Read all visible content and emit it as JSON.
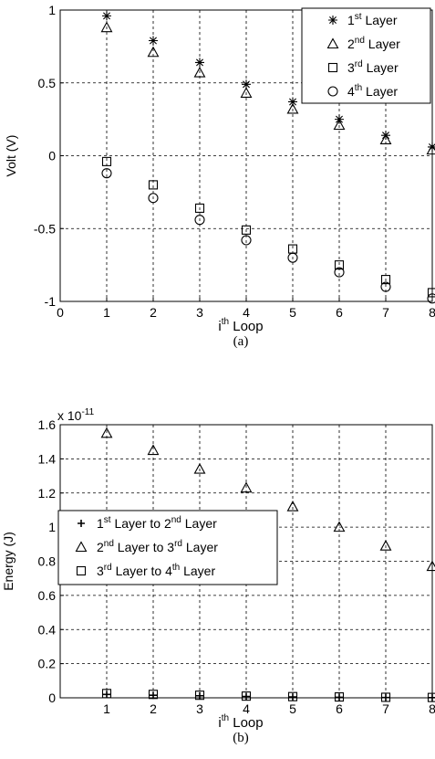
{
  "chart_data": [
    {
      "type": "scatter",
      "ylabel": "Volt (V)",
      "xlabel": {
        "pre": "i",
        "sup": "th",
        "post": " Loop"
      },
      "caption": "(a)",
      "xlim": [
        0,
        8
      ],
      "ylim": [
        -1,
        1
      ],
      "xticks": [
        0,
        1,
        2,
        3,
        4,
        5,
        6,
        7,
        8
      ],
      "yticks": [
        -1,
        -0.5,
        0,
        0.5,
        1
      ],
      "grid": true,
      "legend_position": "top-right",
      "series": [
        {
          "name": {
            "pre": "1",
            "sup": "st",
            "post": " Layer"
          },
          "marker": "star",
          "x": [
            1,
            2,
            3,
            4,
            5,
            6,
            7,
            8
          ],
          "y": [
            0.96,
            0.79,
            0.64,
            0.49,
            0.37,
            0.25,
            0.14,
            0.06
          ]
        },
        {
          "name": {
            "pre": "2",
            "sup": "nd",
            "post": " Layer"
          },
          "marker": "triangle",
          "x": [
            1,
            2,
            3,
            4,
            5,
            6,
            7,
            8
          ],
          "y": [
            0.88,
            0.71,
            0.57,
            0.43,
            0.32,
            0.21,
            0.11,
            0.04
          ]
        },
        {
          "name": {
            "pre": "3",
            "sup": "rd",
            "post": " Layer"
          },
          "marker": "square",
          "x": [
            1,
            2,
            3,
            4,
            5,
            6,
            7,
            8
          ],
          "y": [
            -0.04,
            -0.2,
            -0.36,
            -0.51,
            -0.64,
            -0.75,
            -0.85,
            -0.94
          ]
        },
        {
          "name": {
            "pre": "4",
            "sup": "th",
            "post": " Layer"
          },
          "marker": "circle",
          "x": [
            1,
            2,
            3,
            4,
            5,
            6,
            7,
            8
          ],
          "y": [
            -0.12,
            -0.29,
            -0.44,
            -0.58,
            -0.7,
            -0.8,
            -0.9,
            -0.98
          ]
        }
      ]
    },
    {
      "type": "scatter",
      "ylabel": "Energy (J)",
      "xlabel": {
        "pre": "i",
        "sup": "th",
        "post": " Loop"
      },
      "caption": "(b)",
      "multiplier": {
        "base": "x 10",
        "exp": "-11"
      },
      "xlim": [
        0,
        8
      ],
      "ylim": [
        0,
        1.6
      ],
      "xticks": [
        1,
        2,
        3,
        4,
        5,
        6,
        7,
        8
      ],
      "yticks": [
        0,
        0.2,
        0.4,
        0.6,
        0.8,
        1,
        1.2,
        1.4,
        1.6
      ],
      "grid": true,
      "legend_position": "center-left",
      "series": [
        {
          "name": {
            "a": "1",
            "asup": "st",
            "mid": " Layer to 2",
            "bsup": "nd",
            "post": " Layer"
          },
          "marker": "plus",
          "x": [
            1,
            2,
            3,
            4,
            5,
            6,
            7,
            8
          ],
          "y": [
            0.02,
            0.015,
            0.012,
            0.008,
            0.005,
            0.003,
            0.002,
            0.001
          ]
        },
        {
          "name": {
            "a": "2",
            "asup": "nd",
            "mid": " Layer to 3",
            "bsup": "rd",
            "post": " Layer"
          },
          "marker": "triangle",
          "x": [
            1,
            2,
            3,
            4,
            5,
            6,
            7,
            8
          ],
          "y": [
            1.55,
            1.45,
            1.34,
            1.23,
            1.12,
            1.0,
            0.89,
            0.77
          ]
        },
        {
          "name": {
            "a": "3",
            "asup": "rd",
            "mid": " Layer to 4",
            "bsup": "th",
            "post": " Layer"
          },
          "marker": "square",
          "x": [
            1,
            2,
            3,
            4,
            5,
            6,
            7,
            8
          ],
          "y": [
            0.025,
            0.02,
            0.015,
            0.01,
            0.007,
            0.005,
            0.003,
            0.002
          ]
        }
      ]
    }
  ]
}
